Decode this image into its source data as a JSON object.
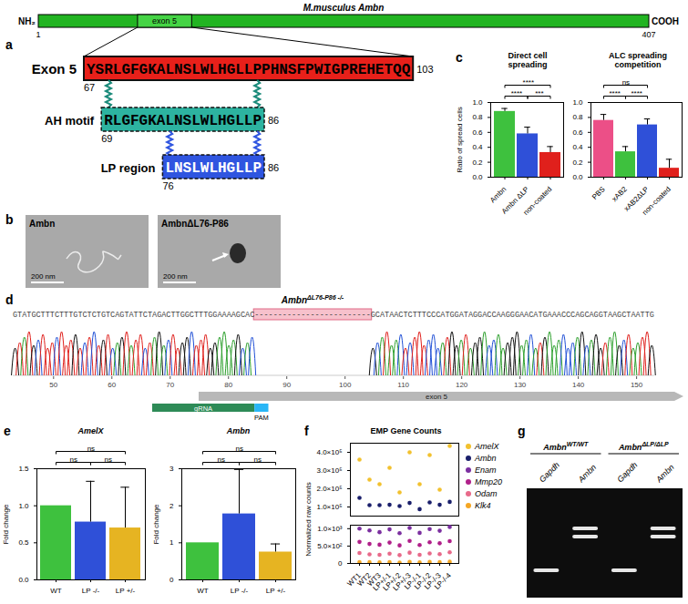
{
  "chart_data": [
    {
      "panel": "c",
      "type": "bar",
      "title": "Direct cell spreading",
      "ylabel": "Ratio of spread cells",
      "categories": [
        "Ambn",
        "Ambn ΔLP",
        "non-coated"
      ],
      "values": [
        0.88,
        0.58,
        0.33
      ],
      "errors": [
        0.04,
        0.09,
        0.08
      ],
      "colors": [
        "#3ec13e",
        "#2f50d8",
        "#e0201c"
      ],
      "ylim": [
        0,
        1
      ],
      "yticks": [
        {
          "value": 0,
          "label": "0.0"
        },
        0.2,
        0.4,
        0.6,
        0.8,
        {
          "value": 1,
          "label": "1.0"
        }
      ],
      "comparisons": [
        {
          "pair": [
            "Ambn",
            "non-coated"
          ],
          "label": "****"
        },
        {
          "pair": [
            "Ambn",
            "Ambn ΔLP"
          ],
          "label": "****"
        },
        {
          "pair": [
            "Ambn ΔLP",
            "non-coated"
          ],
          "label": "***"
        }
      ]
    },
    {
      "type": "bar",
      "title": "ALC spreading competition",
      "categories": [
        "PBS",
        "xAB2",
        "xAB2ΔLP",
        "non-coated"
      ],
      "values": [
        0.76,
        0.34,
        0.7,
        0.12
      ],
      "errors": [
        0.08,
        0.07,
        0.08,
        0.12
      ],
      "colors": [
        "#ec4f87",
        "#3ec13e",
        "#2f50d8",
        "#e0201c"
      ],
      "ylim": [
        0,
        1
      ],
      "yticks": [
        {
          "value": 0,
          "label": "0.0"
        },
        0.2,
        0.4,
        0.6,
        0.8,
        {
          "value": 1,
          "label": "1.0"
        }
      ],
      "comparisons": [
        {
          "pair": [
            "PBS",
            "xAB2ΔLP"
          ],
          "label": "ns"
        },
        {
          "pair": [
            "PBS",
            "xAB2"
          ],
          "label": "****"
        },
        {
          "pair": [
            "xAB2",
            "xAB2ΔLP"
          ],
          "label": "****"
        }
      ]
    },
    {
      "panel": "e",
      "type": "bar",
      "title": "AmelX",
      "ylabel": "Fold change",
      "categories": [
        "WT",
        "LP -/-",
        "LP +/-"
      ],
      "values": [
        1,
        0.78,
        0.7
      ],
      "errors": [
        null,
        0.55,
        0.55
      ],
      "colors": [
        "#3ec13e",
        "#2f50d8",
        "#e6b422"
      ],
      "ylim": [
        0,
        1.5
      ],
      "yticks": [
        {
          "value": 0,
          "label": "0.0"
        },
        0.5,
        {
          "value": 1,
          "label": "1.0"
        },
        1.5
      ],
      "comparisons": [
        {
          "pair": [
            "WT",
            "LP -/-"
          ],
          "label": "ns"
        },
        {
          "pair": [
            "WT",
            "LP +/-"
          ],
          "label": "ns"
        },
        {
          "pair": [
            "LP -/-",
            "LP +/-"
          ],
          "label": "ns"
        }
      ]
    },
    {
      "type": "bar",
      "title": "Ambn",
      "ylabel": "Fold change",
      "categories": [
        "WT",
        "LP -/-",
        "LP +/-"
      ],
      "values": [
        1,
        1.78,
        0.75
      ],
      "errors": [
        null,
        1.2,
        0.22
      ],
      "colors": [
        "#3ec13e",
        "#2f50d8",
        "#e6b422"
      ],
      "ylim": [
        0,
        3
      ],
      "yticks": [
        0,
        1,
        2,
        3
      ],
      "comparisons": [
        {
          "pair": [
            "WT",
            "LP -/-"
          ],
          "label": "ns"
        },
        {
          "pair": [
            "WT",
            "LP +/-"
          ],
          "label": "ns"
        },
        {
          "pair": [
            "LP -/-",
            "LP +/-"
          ],
          "label": "ns"
        }
      ]
    },
    {
      "panel": "f",
      "type": "scatter",
      "title": "EMP Gene Counts",
      "ylabel": "Normalized raw counts",
      "legend": "right",
      "categories": [
        "WT1",
        "WT2",
        "WT3",
        "LP+/-1",
        "LP+/-2",
        "LP+/-3",
        "LP-/-1",
        "LP-/-2",
        "LP-/-3",
        "LP-/-4"
      ],
      "y_segments": [
        {
          "ylim": [
            50000,
            450000
          ],
          "yticks": [
            {
              "value": 100000,
              "label": "1.0×10⁵"
            },
            {
              "value": 200000,
              "label": "2.0×10⁵"
            },
            {
              "value": 300000,
              "label": "3.0×10⁵"
            },
            {
              "value": 400000,
              "label": "4.0×10⁵"
            }
          ]
        },
        {
          "ylim": [
            0,
            1100
          ],
          "yticks": [
            0,
            {
              "value": 500,
              "label": "5.0×10²"
            },
            {
              "value": 1000,
              "label": "1.0×10³"
            }
          ]
        }
      ],
      "series": [
        {
          "name": "AmelX",
          "color": "#f2c12e",
          "values": [
            360000,
            250000,
            225000,
            315000,
            180000,
            400000,
            225000,
            385000,
            195000,
            435000
          ]
        },
        {
          "name": "Ambn",
          "color": "#1a1f6b",
          "values": [
            150000,
            110000,
            110000,
            112000,
            105000,
            122000,
            88000,
            125000,
            112000,
            128000
          ]
        },
        {
          "name": "Enam",
          "color": "#7b2fa0",
          "values": [
            1000,
            950,
            900,
            980,
            870,
            1020,
            880,
            990,
            940,
            1050
          ]
        },
        {
          "name": "Mmp20",
          "color": "#b0208a",
          "values": [
            620,
            560,
            540,
            600,
            520,
            650,
            530,
            610,
            580,
            640
          ]
        },
        {
          "name": "Odam",
          "color": "#e86a8a",
          "values": [
            300,
            260,
            250,
            280,
            240,
            310,
            250,
            290,
            270,
            320
          ]
        },
        {
          "name": "Klk4",
          "color": "#f5a623",
          "values": [
            40,
            35,
            30,
            38,
            28,
            45,
            30,
            42,
            36,
            48
          ]
        }
      ]
    }
  ],
  "panel_a": {
    "panel": "a",
    "title": "M.musculus Ambn",
    "n_terminus": "NH₂",
    "c_terminus": "COOH",
    "length_start": 1,
    "length_end": 407,
    "exon_label": "exon 5",
    "exon": {
      "label": "Exon 5",
      "sequence": "YSRLGFGKALNSLWLHGLLPPHNSFPWIGPREHETQQ",
      "start": 67,
      "end": 103
    },
    "motifs": [
      {
        "label": "AH motif",
        "sequence": "RLGFGKALNSLWLHGLLP",
        "start": 69,
        "end": 86
      },
      {
        "label": "LP region",
        "sequence": "LNSLWLHGLLP",
        "start": 76,
        "end": 86
      }
    ]
  },
  "panel_b": {
    "panel": "b",
    "images": [
      {
        "label": "Ambn",
        "scale_bar": "200 nm"
      },
      {
        "label": "AmbnΔL76-P86",
        "scale_bar": "200 nm"
      }
    ]
  },
  "panel_d": {
    "panel": "d",
    "title": "Ambn",
    "title_superscript": "ΔL76-P86 -/-",
    "sequence_before": "GTATGCTTTCTTTGTCTCTGTCAGTATTCTAGACTTGGCTTTGGAAAAGCAC",
    "deletion": "-------------------------",
    "sequence_after": "GCATAACTCTTTCCCATGGATAGGACCAAGGGAACATGAAACCCAGCAGGTAAGCTAATTG",
    "xlim": [
      43,
      153
    ],
    "xticks": [
      50,
      60,
      70,
      80,
      90,
      100,
      110,
      120,
      130,
      140,
      150
    ],
    "features": {
      "exon": "exon 5",
      "guide": "gRNA",
      "pam": "PAM"
    }
  },
  "panel_g": {
    "panel": "g",
    "groups": [
      {
        "gene": "Ambn",
        "genotype": "WT/WT",
        "lanes": [
          {
            "label": "Gapdh",
            "bands": 1
          },
          {
            "label": "Ambn",
            "bands": 2
          }
        ]
      },
      {
        "gene": "Ambn",
        "genotype": "ΔLP/ΔLP",
        "lanes": [
          {
            "label": "Gapdh",
            "bands": 1
          },
          {
            "label": "Ambn",
            "bands": 2
          }
        ]
      }
    ]
  }
}
